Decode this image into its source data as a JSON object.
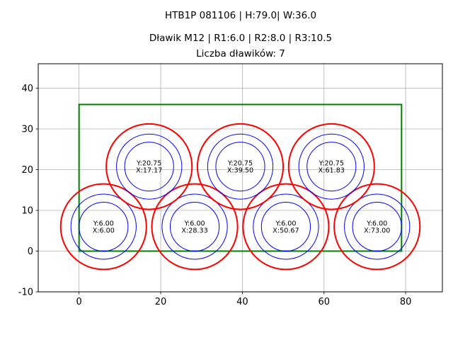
{
  "chart_data": {
    "type": "scatter",
    "title_lines": [
      "HTB1P 081106 | H:79.0| W:36.0",
      "Dławik M12 | R1:6.0 | R2:8.0 | R3:10.5",
      "Liczba dławików: 7"
    ],
    "xlim": [
      -10,
      89
    ],
    "ylim": [
      -10,
      46
    ],
    "xticks": [
      0,
      20,
      40,
      60,
      80
    ],
    "yticks": [
      -10,
      0,
      10,
      20,
      30,
      40
    ],
    "grid": true,
    "rectangle": {
      "x": 0,
      "y": 0,
      "width": 79.0,
      "height": 36.0,
      "color": "#008000"
    },
    "radii": {
      "r1": 6.0,
      "r2": 8.0,
      "r3": 10.5
    },
    "ring_colors": {
      "r1": "#0000ff",
      "r2": "#0000ff",
      "r3": "#ff0000"
    },
    "circles": [
      {
        "x": 6.0,
        "y": 6.0,
        "label_y": "Y:6.00",
        "label_x": "X:6.00"
      },
      {
        "x": 28.33,
        "y": 6.0,
        "label_y": "Y:6.00",
        "label_x": "X:28.33"
      },
      {
        "x": 50.67,
        "y": 6.0,
        "label_y": "Y:6.00",
        "label_x": "X:50.67"
      },
      {
        "x": 73.0,
        "y": 6.0,
        "label_y": "Y:6.00",
        "label_x": "X:73.00"
      },
      {
        "x": 17.17,
        "y": 20.75,
        "label_y": "Y:20.75",
        "label_x": "X:17.17"
      },
      {
        "x": 39.5,
        "y": 20.75,
        "label_y": "Y:20.75",
        "label_x": "X:39.50"
      },
      {
        "x": 61.83,
        "y": 20.75,
        "label_y": "Y:20.75",
        "label_x": "X:61.83"
      }
    ]
  }
}
